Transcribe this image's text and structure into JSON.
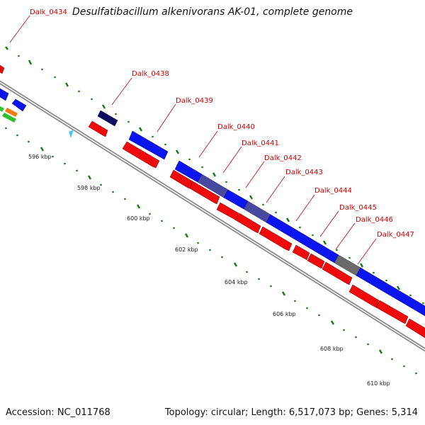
{
  "title": "Desulfatibacillum alkenivorans AK-01, complete genome",
  "footer": {
    "accession": "Accession: NC_011768",
    "summary": "Topology: circular; Length: 6,517,073 bp; Genes: 5,314"
  },
  "colors": {
    "forward_cds": "#0a14ee",
    "reverse_cds": "#ee0a0a",
    "dark_gene": "#0c0c5e",
    "tick_green": "#1a7a1a",
    "label_red": "#cc0000",
    "backbone": "#9a9a9a"
  },
  "gene_labels": [
    "Dalk_0434",
    "Dalk_0438",
    "Dalk_0439",
    "Dalk_0440",
    "Dalk_0441",
    "Dalk_0442",
    "Dalk_0443",
    "Dalk_0444",
    "Dalk_0445",
    "Dalk_0446",
    "Dalk_0447"
  ],
  "scale_labels": [
    "596 kbp",
    "598 kbp",
    "600 kbp",
    "602 kbp",
    "604 kbp",
    "606 kbp",
    "608 kbp",
    "610 kbp"
  ]
}
